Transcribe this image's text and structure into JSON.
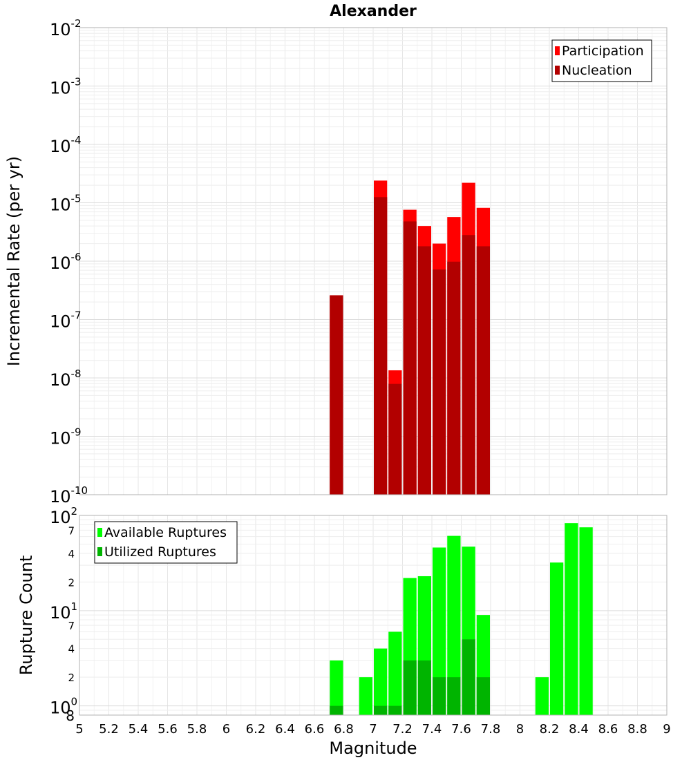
{
  "chart_data": [
    {
      "type": "bar",
      "title": "Alexander",
      "ylabel": "Incremental Rate (per yr)",
      "xlabel": "",
      "y_scale": "log",
      "ylim": [
        1e-10,
        0.01
      ],
      "xlim": [
        5,
        9
      ],
      "bar_width": 0.1,
      "grid": true,
      "legend_position": "top-right",
      "y_ticks": [
        {
          "base": "10",
          "exp": "-10",
          "value": 1e-10
        },
        {
          "base": "10",
          "exp": "-9",
          "value": 1e-09
        },
        {
          "base": "10",
          "exp": "-8",
          "value": 1e-08
        },
        {
          "base": "10",
          "exp": "-7",
          "value": 1e-07
        },
        {
          "base": "10",
          "exp": "-6",
          "value": 1e-06
        },
        {
          "base": "10",
          "exp": "-5",
          "value": 1e-05
        },
        {
          "base": "10",
          "exp": "-4",
          "value": 0.0001
        },
        {
          "base": "10",
          "exp": "-3",
          "value": 0.001
        },
        {
          "base": "10",
          "exp": "-2",
          "value": 0.01
        }
      ],
      "series": [
        {
          "name": "Participation",
          "color": "#ff0000",
          "x": [
            6.75,
            7.05,
            7.15,
            7.25,
            7.35,
            7.45,
            7.55,
            7.65,
            7.75
          ],
          "values": [
            2.6e-07,
            2.4e-05,
            1.35e-08,
            7.6e-06,
            4e-06,
            2e-06,
            5.7e-06,
            2.2e-05,
            8.2e-06
          ]
        },
        {
          "name": "Nucleation",
          "color": "#b20000",
          "x": [
            6.75,
            7.05,
            7.15,
            7.25,
            7.35,
            7.45,
            7.55,
            7.65,
            7.75
          ],
          "values": [
            2.6e-07,
            1.25e-05,
            7.9e-09,
            4.8e-06,
            1.8e-06,
            7.2e-07,
            9.8e-07,
            2.8e-06,
            1.8e-06
          ]
        }
      ]
    },
    {
      "type": "bar",
      "title": "",
      "ylabel": "Rupture Count",
      "xlabel": "Magnitude",
      "y_scale": "log",
      "ylim": [
        0.8,
        100
      ],
      "xlim": [
        5,
        9
      ],
      "bar_width": 0.1,
      "grid": true,
      "legend_position": "top-left",
      "x_ticks": [
        "5",
        "5.2",
        "5.4",
        "5.6",
        "5.8",
        "6",
        "6.2",
        "6.4",
        "6.6",
        "6.8",
        "7",
        "7.2",
        "7.4",
        "7.6",
        "7.8",
        "8",
        "8.2",
        "8.4",
        "8.6",
        "8.8",
        "9"
      ],
      "y_major_ticks": [
        {
          "base": "10",
          "exp": "0",
          "value": 1
        },
        {
          "base": "10",
          "exp": "1",
          "value": 10
        },
        {
          "base": "10",
          "exp": "2",
          "value": 100
        }
      ],
      "y_minor_labels": [
        {
          "label": "8",
          "value": 0.8
        },
        {
          "label": "2",
          "value": 2
        },
        {
          "label": "4",
          "value": 4
        },
        {
          "label": "7",
          "value": 7
        },
        {
          "label": "2",
          "value": 20
        },
        {
          "label": "4",
          "value": 40
        },
        {
          "label": "7",
          "value": 70
        }
      ],
      "series": [
        {
          "name": "Available Ruptures",
          "color": "#00ff00",
          "x": [
            6.75,
            6.95,
            7.05,
            7.15,
            7.25,
            7.35,
            7.45,
            7.55,
            7.65,
            7.75,
            8.15,
            8.25,
            8.35,
            8.45
          ],
          "values": [
            3,
            2,
            4,
            6,
            22,
            23,
            46,
            61,
            47,
            9,
            2,
            32,
            83,
            75
          ]
        },
        {
          "name": "Utilized Ruptures",
          "color": "#00b400",
          "x": [
            6.75,
            7.05,
            7.15,
            7.25,
            7.35,
            7.45,
            7.55,
            7.65,
            7.75
          ],
          "values": [
            1,
            1,
            1,
            3,
            3,
            2,
            2,
            5,
            2
          ]
        }
      ]
    }
  ]
}
